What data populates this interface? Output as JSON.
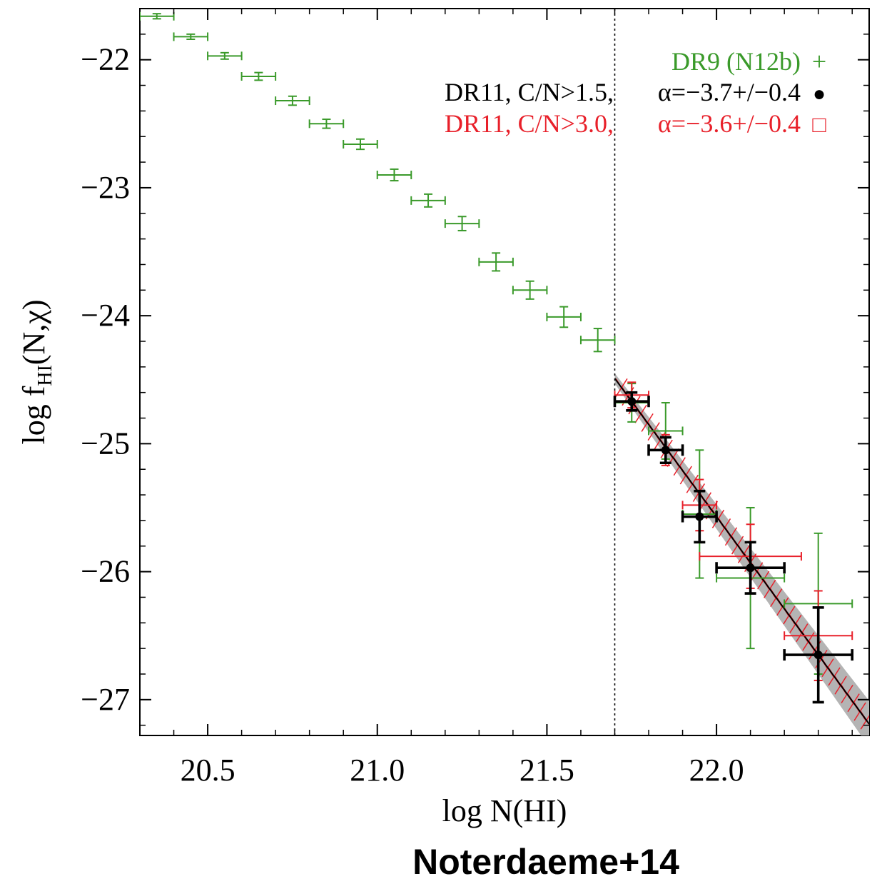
{
  "chart_data": {
    "type": "scatter",
    "xlabel": "log N(HI)",
    "ylabel": "log f",
    "ylabel_sub": "HI",
    "ylabel_tail": "(N,χ)",
    "xlim": [
      20.3,
      22.45
    ],
    "ylim": [
      -27.28,
      -21.6
    ],
    "x_ticks": [
      20.5,
      21.0,
      21.5,
      22.0
    ],
    "x_tick_labels": [
      "20.5",
      "21.0",
      "21.5",
      "22.0"
    ],
    "y_ticks": [
      -22,
      -23,
      -24,
      -25,
      -26,
      -27
    ],
    "y_tick_labels": [
      "−22",
      "−23",
      "−24",
      "−25",
      "−26",
      "−27"
    ],
    "grid": false,
    "vline_x": 21.7,
    "fit_range": [
      21.7,
      22.45
    ],
    "fit_colors": {
      "band": "#b4b4b4",
      "hatch": "#e8202a",
      "line": "#000000"
    },
    "legend": {
      "position": "top-right",
      "entries": [
        {
          "label": "DR9 (N12b)",
          "alpha": "",
          "symbol": "+",
          "color": "#3a9a2a"
        },
        {
          "label": "DR11, C/N>1.5,",
          "alpha": "α=−3.7+/−0.4",
          "symbol": "●",
          "color": "#000000"
        },
        {
          "label": "DR11, C/N>3.0,",
          "alpha": "α=−3.6+/−0.4",
          "symbol": "□",
          "color": "#e8202a"
        }
      ]
    },
    "series": [
      {
        "name": "DR9 (N12b)",
        "color": "#3a9a2a",
        "points": [
          {
            "x": 20.35,
            "y": -21.66,
            "xerr": 0.05,
            "yerr": 0.02
          },
          {
            "x": 20.45,
            "y": -21.82,
            "xerr": 0.05,
            "yerr": 0.02
          },
          {
            "x": 20.55,
            "y": -21.97,
            "xerr": 0.05,
            "yerr": 0.025
          },
          {
            "x": 20.65,
            "y": -22.13,
            "xerr": 0.05,
            "yerr": 0.03
          },
          {
            "x": 20.75,
            "y": -22.32,
            "xerr": 0.05,
            "yerr": 0.035
          },
          {
            "x": 20.85,
            "y": -22.5,
            "xerr": 0.05,
            "yerr": 0.035
          },
          {
            "x": 20.95,
            "y": -22.66,
            "xerr": 0.05,
            "yerr": 0.04
          },
          {
            "x": 21.05,
            "y": -22.9,
            "xerr": 0.05,
            "yerr": 0.045
          },
          {
            "x": 21.15,
            "y": -23.1,
            "xerr": 0.05,
            "yerr": 0.05
          },
          {
            "x": 21.25,
            "y": -23.28,
            "xerr": 0.05,
            "yerr": 0.055
          },
          {
            "x": 21.35,
            "y": -23.58,
            "xerr": 0.05,
            "yerr": 0.07
          },
          {
            "x": 21.45,
            "y": -23.8,
            "xerr": 0.05,
            "yerr": 0.07
          },
          {
            "x": 21.55,
            "y": -24.01,
            "xerr": 0.05,
            "yerr": 0.08
          },
          {
            "x": 21.65,
            "y": -24.19,
            "xerr": 0.05,
            "yerr": 0.09
          },
          {
            "x": 21.75,
            "y": -24.68,
            "xerr": 0.05,
            "yerr": 0.15
          },
          {
            "x": 21.85,
            "y": -24.9,
            "xerr": 0.05,
            "yerr": 0.22
          },
          {
            "x": 21.95,
            "y": -25.55,
            "xerr": 0.05,
            "yerr": 0.5
          },
          {
            "x": 22.1,
            "y": -26.05,
            "xerr": 0.1,
            "yerr": 0.55
          },
          {
            "x": 22.3,
            "y": -26.25,
            "xerr": 0.1,
            "yerr": 0.55
          }
        ]
      },
      {
        "name": "DR11, C/N>3.0,",
        "color": "#e8202a",
        "points": [
          {
            "x": 21.75,
            "y": -24.62,
            "xerr": 0.05,
            "yerr": 0.1
          },
          {
            "x": 21.85,
            "y": -25.05,
            "xerr": 0.05,
            "yerr": 0.12
          },
          {
            "x": 21.95,
            "y": -25.48,
            "xerr": 0.05,
            "yerr": 0.2
          },
          {
            "x": 22.1,
            "y": -25.88,
            "xerr": 0.15,
            "yerr": 0.25
          },
          {
            "x": 22.3,
            "y": -26.5,
            "xerr": 0.1,
            "yerr": 0.35
          }
        ]
      },
      {
        "name": "DR11, C/N>1.5,",
        "color": "#000000",
        "points": [
          {
            "x": 21.75,
            "y": -24.67,
            "xerr": 0.05,
            "yerr": 0.07
          },
          {
            "x": 21.85,
            "y": -25.05,
            "xerr": 0.05,
            "yerr": 0.1
          },
          {
            "x": 21.95,
            "y": -25.57,
            "xerr": 0.05,
            "yerr": 0.2
          },
          {
            "x": 22.1,
            "y": -25.97,
            "xerr": 0.1,
            "yerr": 0.2
          },
          {
            "x": 22.3,
            "y": -26.65,
            "xerr": 0.1,
            "yerr": 0.37
          }
        ]
      }
    ]
  },
  "footer": {
    "credit": "Noterdaeme+14"
  }
}
